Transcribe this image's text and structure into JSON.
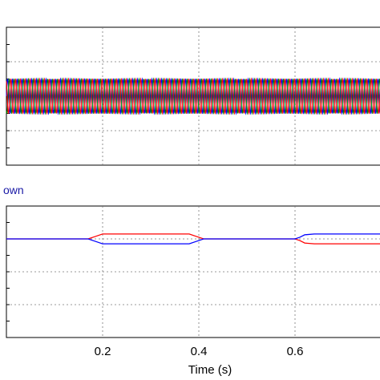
{
  "chart_data": [
    {
      "type": "line",
      "panel": "top",
      "xlim": [
        0.0,
        0.78
      ],
      "grid": true,
      "waveform": {
        "kind": "three-phase sinusoid",
        "frequency_hz": 100,
        "amplitude": 1.0,
        "phases_deg": [
          0,
          -120,
          120
        ],
        "x_start": 0.0,
        "x_end": 0.78
      },
      "series": [
        {
          "color": "#0000ff"
        },
        {
          "color": "#008000"
        },
        {
          "color": "#ff0000"
        }
      ],
      "ylim": [
        -4.0,
        4.0
      ],
      "yticks_count": 9
    },
    {
      "type": "line",
      "panel": "bottom",
      "title": "own",
      "xlim": [
        0.0,
        0.78
      ],
      "ylim": [
        -4.0,
        4.0
      ],
      "grid": true,
      "yticks_count": 9,
      "series": [
        {
          "color": "#ff0000",
          "x": [
            0.0,
            0.17,
            0.185,
            0.2,
            0.25,
            0.3,
            0.35,
            0.38,
            0.395,
            0.41,
            0.43,
            0.6,
            0.61,
            0.62,
            0.64,
            0.66,
            0.68,
            0.7,
            0.73,
            0.78
          ],
          "y": [
            2.0,
            2.0,
            2.15,
            2.3,
            2.3,
            2.3,
            2.3,
            2.3,
            2.15,
            2.0,
            2.0,
            2.0,
            1.9,
            1.75,
            1.7,
            1.7,
            1.7,
            1.7,
            1.7,
            1.7
          ]
        },
        {
          "color": "#0000ff",
          "x": [
            0.0,
            0.17,
            0.185,
            0.2,
            0.25,
            0.3,
            0.35,
            0.38,
            0.395,
            0.41,
            0.43,
            0.6,
            0.61,
            0.62,
            0.64,
            0.66,
            0.68,
            0.7,
            0.73,
            0.78
          ],
          "y": [
            2.0,
            2.0,
            1.85,
            1.7,
            1.7,
            1.7,
            1.7,
            1.7,
            1.85,
            2.0,
            2.0,
            2.0,
            2.1,
            2.25,
            2.3,
            2.3,
            2.3,
            2.3,
            2.3,
            2.3
          ]
        }
      ]
    }
  ],
  "x_axis": {
    "label": "Time (s)",
    "ticks": [
      {
        "value": 0.2,
        "label": "0.2"
      },
      {
        "value": 0.4,
        "label": "0.4"
      },
      {
        "value": 0.6,
        "label": "0.6"
      }
    ]
  }
}
